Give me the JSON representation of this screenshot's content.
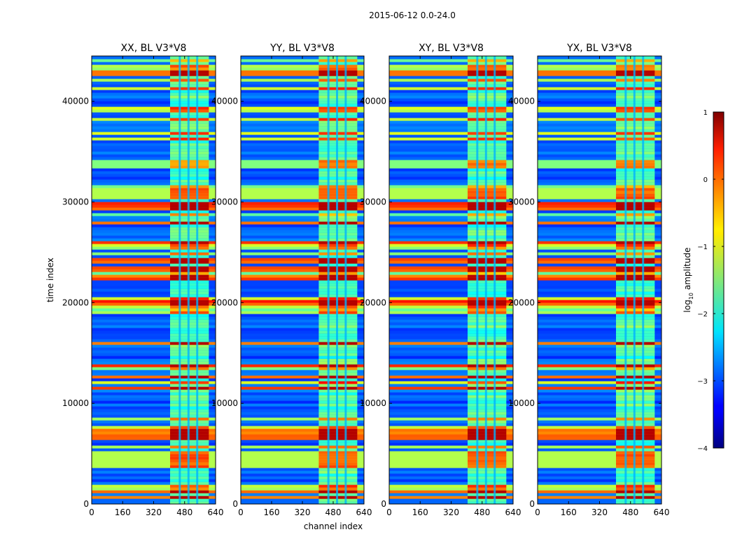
{
  "figure": {
    "suptitle": "2015-06-12 0.0-24.0"
  },
  "chart_data": {
    "type": "heatmap",
    "subplots": [
      {
        "title": "XX, BL V3*V8"
      },
      {
        "title": "YY, BL V3*V8"
      },
      {
        "title": "XY, BL V3*V8"
      },
      {
        "title": "YX, BL V3*V8"
      }
    ],
    "xlabel": "channel index",
    "ylabel": "time index",
    "xlim": [
      0,
      640
    ],
    "ylim": [
      0,
      44500
    ],
    "x_ticks": [
      0,
      160,
      320,
      480,
      640
    ],
    "y_ticks": [
      0,
      10000,
      20000,
      30000,
      40000
    ],
    "colorbar": {
      "label": "log10 amplitude",
      "label_main": "log",
      "label_sub": "10",
      "label_rest": " amplitude",
      "range": [
        -4,
        1
      ],
      "ticks": [
        1,
        0,
        -1,
        -2,
        -3,
        -4
      ],
      "tick_labels": [
        "1",
        "0",
        "−1",
        "−2",
        "−3",
        "−4"
      ],
      "colormap": "jet"
    },
    "features": {
      "rfi_channel_band": [
        405,
        605
      ],
      "rfi_channel_gaps": [
        455,
        500,
        545
      ],
      "strong_time_rows": [
        700,
        1300,
        5200,
        6600,
        7200,
        11500,
        12600,
        13800,
        16000,
        20000,
        22500,
        23300,
        24200,
        26000,
        27900,
        29300,
        29700,
        30500,
        34000,
        42800
      ]
    }
  }
}
